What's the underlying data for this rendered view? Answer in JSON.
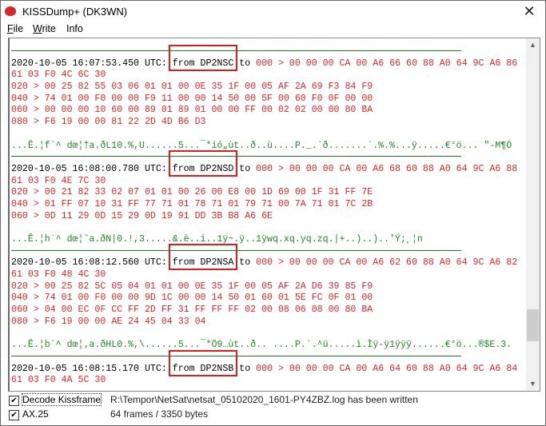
{
  "window": {
    "title": "KISSDump+ (DK3WN)",
    "close_icon": "close-icon",
    "app_icon": "kiss-lips-icon"
  },
  "menu": [
    {
      "label": "File",
      "accel": "F",
      "rest": "ile"
    },
    {
      "label": "Write",
      "accel": "W",
      "rest": "rite"
    },
    {
      "label": "Info",
      "accel": "",
      "rest": "Info"
    }
  ],
  "log": {
    "to_label": "to",
    "entries": [
      {
        "prefix": "2020-10-05 16:07:53.450 UTC: ",
        "from": "from DP2NSC",
        "hex": [
          "000 > 00 00 00 CA 00 A6 66 60 88 A0 64 9C A6 86",
          "61 03 F0 4C 6C 30",
          "020 > 00 25 82 55 03 06 01 01 00 0E 35 1F 00 05 AF 2A 69 F3 84 F9",
          "040 > 74 01 00 F0 00 00 F9 11 00 00 14 50 00 5F 00 60 F0 0F 00 00",
          "060 > 00 00 00 10 60 00 89 01 89 01 00 00 FF 00 02 02 00 00 80 BA",
          "080 > F6 19 00 00 81 22 2D 4D B6 D3"
        ],
        "ascii": "...Ê.¦f`^ dœ¦†a.ðL10.%,U......5...¯*ió„ùt..ð..ù....P._.`ð.......`.%.%...ÿ.....€°ö... \"-M¶Ó"
      },
      {
        "prefix": "2020-10-05 16:08:00.780 UTC: ",
        "from": "from DP2NSD",
        "hex": [
          "000 > 00 00 00 CA 00 A6 68 60 88 A0 64 9C A6 88",
          "61 03 F0 4E 7C 30",
          "020 > 00 21 82 33 02 07 01 01 00 26 00 E8 00 1D 69 00 1F 31 FF 7E",
          "040 > 01 FF 07 10 31 FF 77 71 01 78 71 01 79 71 00 7A 71 01 7C 2B",
          "060 > 0D 11 29 0D 15 29 0D 19 91 DD 3B B8 A6 6E"
        ],
        "ascii": "...Ê.¦h`^ dœ¦ˆa.ðN|0.!,3.....&.è..i..1ÿ~.ÿ..1ÿwq.xq.yq.zq.|+..)..)..'Ý;¸¦n"
      },
      {
        "prefix": "2020-10-05 16:08:12.560 UTC: ",
        "from": "from DP2NSA",
        "hex": [
          "000 > 00 00 00 CA 00 A6 62 60 88 A0 64 9C A6 82",
          "61 03 F0 48 4C 30",
          "020 > 00 25 82 5C 05 04 01 01 00 0E 35 1F 00 05 AF 2A D6 39 85 F9",
          "040 > 74 01 00 F0 00 00 9D 1C 00 00 14 50 01 60 01 5E FC 0F 01 00",
          "060 > 04 00 EC 0F CC FF 2D FF 31 FF FF FF 02 00 08 06 08 00 80 BA",
          "080 > F6 19 00 00 AE 24 45 04 33 04"
        ],
        "ascii": "...Ê.¦b`^ dœ¦‚a.ðHL0.%,\\......5...¯*Ö9…ùt..ð.. ....P.`.^ü.....ì.Ìÿ-ÿ1ÿÿÿ......€°ö...®$E.3."
      },
      {
        "prefix": "2020-10-05 16:08:15.170 UTC: ",
        "from": "from DP2NSB",
        "hex": [
          "000 > 00 00 00 CA 00 A6 64 60 88 A0 64 9C A6 84",
          "61 03 F0 4A 5C 30"
        ],
        "ascii": ""
      }
    ]
  },
  "options": {
    "decode_kissframe": {
      "label": "Decode Kissframe",
      "checked": true
    },
    "ax25": {
      "label": "AX.25",
      "checked": true
    }
  },
  "status": {
    "message": "R:\\Tempor\\NetSat\\netsat_05102020_1601-PY4ZBZ.log has been written",
    "summary": "64 frames / 3350 bytes"
  },
  "scrollbar": {
    "position_fraction": 0.85
  }
}
